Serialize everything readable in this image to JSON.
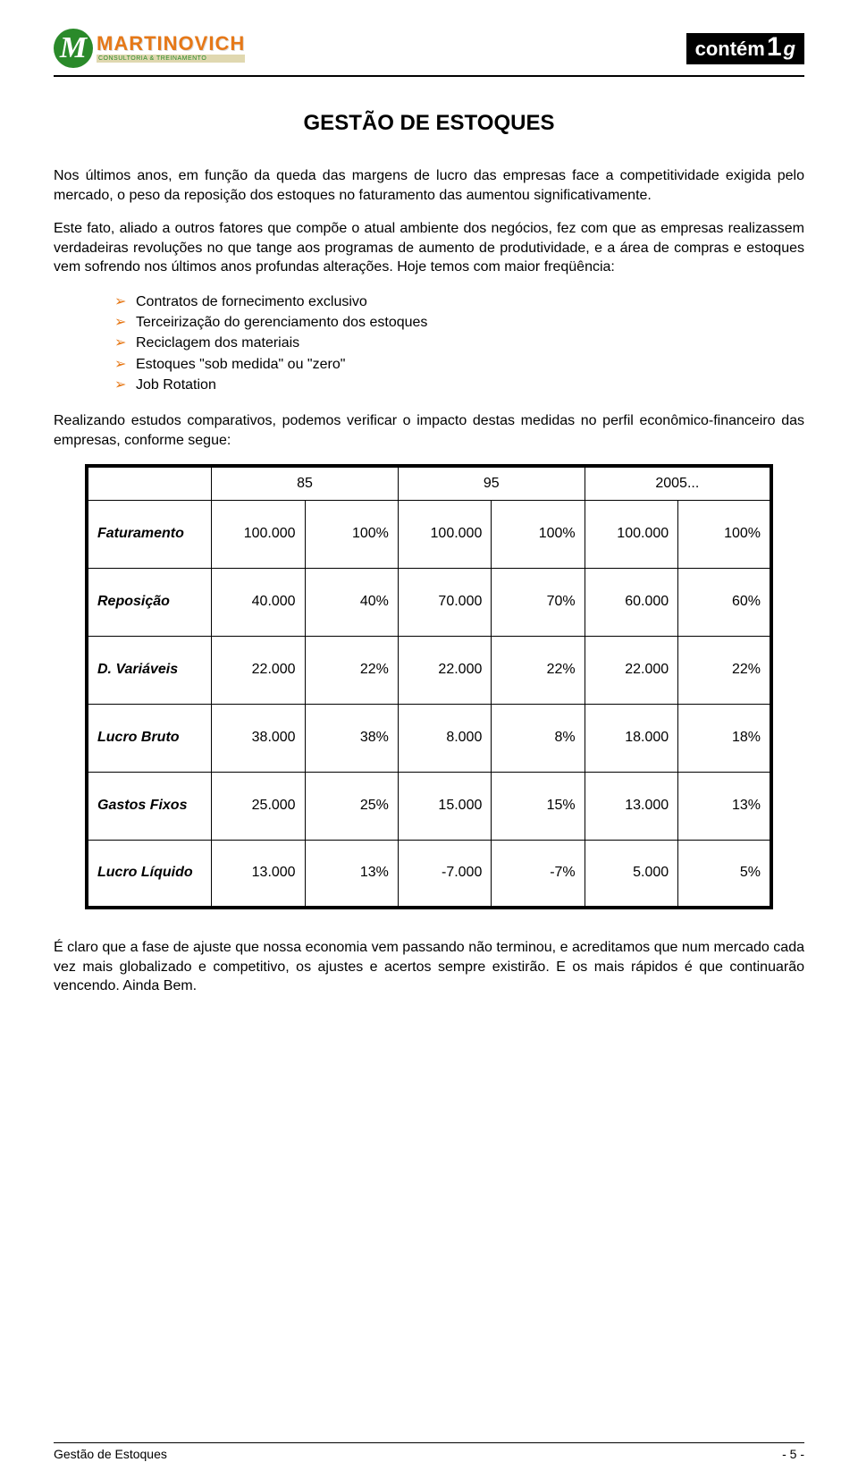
{
  "header": {
    "logo_left_main": "MARTINOVICH",
    "logo_left_sub": "CONSULTORIA & TREINAMENTO",
    "logo_right_main": "contém",
    "logo_right_num": "1",
    "logo_right_g": "g"
  },
  "title": "GESTÃO DE ESTOQUES",
  "paragraphs": {
    "p1": "Nos últimos anos, em função da queda das margens de lucro das empresas face a competitividade exigida pelo mercado, o peso da reposição dos estoques no faturamento das aumentou significativamente.",
    "p2": "Este fato, aliado a outros fatores que compõe o atual ambiente dos negócios, fez com que as empresas realizassem verdadeiras revoluções no que tange aos programas de aumento de produtividade, e a área de compras e estoques vem sofrendo nos últimos anos profundas alterações. Hoje temos com maior freqüência:",
    "p3": "Realizando estudos comparativos, podemos verificar o impacto destas medidas no perfil econômico-financeiro das empresas, conforme segue:",
    "p4": "É claro que a fase de ajuste que nossa economia vem passando não terminou, e acreditamos que num mercado cada vez mais globalizado e competitivo, os ajustes e acertos sempre existirão. E os mais rápidos é que continuarão vencendo. Ainda Bem."
  },
  "bullets": [
    "Contratos de fornecimento exclusivo",
    "Terceirização do gerenciamento dos estoques",
    "Reciclagem dos materiais",
    "Estoques \"sob medida\" ou \"zero\"",
    "Job Rotation"
  ],
  "table": {
    "years": [
      "85",
      "95",
      "2005..."
    ],
    "rows": [
      {
        "label": "Faturamento",
        "v": [
          "100.000",
          "100%",
          "100.000",
          "100%",
          "100.000",
          "100%"
        ]
      },
      {
        "label": "Reposição",
        "v": [
          "40.000",
          "40%",
          "70.000",
          "70%",
          "60.000",
          "60%"
        ]
      },
      {
        "label": "D. Variáveis",
        "v": [
          "22.000",
          "22%",
          "22.000",
          "22%",
          "22.000",
          "22%"
        ]
      },
      {
        "label": "Lucro Bruto",
        "v": [
          "38.000",
          "38%",
          "8.000",
          "8%",
          "18.000",
          "18%"
        ]
      },
      {
        "label": "Gastos Fixos",
        "v": [
          "25.000",
          "25%",
          "15.000",
          "15%",
          "13.000",
          "13%"
        ]
      },
      {
        "label": "Lucro Líquido",
        "v": [
          "13.000",
          "13%",
          "-7.000",
          "-7%",
          "5.000",
          "5%"
        ]
      }
    ]
  },
  "footer": {
    "left": "Gestão de Estoques",
    "right": "- 5 -"
  },
  "colors": {
    "accent_orange": "#e67817",
    "accent_green": "#2a8a2a",
    "text": "#000000",
    "background": "#ffffff"
  }
}
